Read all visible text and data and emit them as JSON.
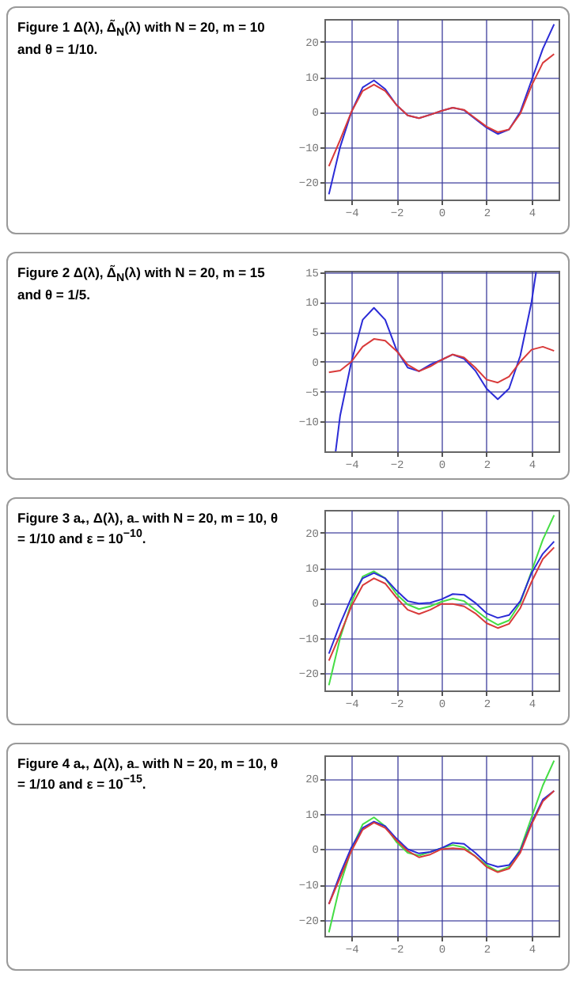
{
  "chart_data": [
    {
      "type": "line",
      "title": "Figure 1  Δ(λ), Δ̃$_{N}$(λ) with N = 20, m = 10 and θ = 1/10.",
      "x": [
        -5,
        -4.5,
        -4,
        -3.5,
        -3,
        -2.5,
        -2,
        -1.5,
        -1,
        -0.5,
        0,
        0.5,
        1,
        1.5,
        2,
        2.5,
        3,
        3.5,
        4,
        4.5,
        5
      ],
      "xlim": [
        -5.2,
        5.2
      ],
      "xticks": [
        -4,
        -2,
        0,
        2,
        4
      ],
      "ylim": [
        -25,
        26.5
      ],
      "yticks": [
        -20,
        -10,
        0,
        10,
        20
      ],
      "grid": true,
      "series": [
        {
          "color": "#2b2bd6",
          "values": [
            -23.5,
            -10,
            0,
            7,
            9,
            6.5,
            2,
            -1,
            -1.8,
            -0.8,
            0.3,
            1.2,
            0.5,
            -2,
            -4.5,
            -6.3,
            -5,
            0,
            9,
            18,
            25
          ]
        },
        {
          "color": "#d93a3a",
          "values": [
            -15.5,
            -8,
            0,
            6,
            7.8,
            6,
            2,
            -1,
            -1.8,
            -0.8,
            0.3,
            1.2,
            0.6,
            -1.8,
            -4.2,
            -5.8,
            -5,
            -0.5,
            7.5,
            14,
            16.5
          ]
        }
      ]
    },
    {
      "type": "line",
      "title": "Figure 2  Δ(λ), Δ̃$_{N}$(λ) with N = 20, m = 15 and θ = 1/5.",
      "x": [
        -5,
        -4.5,
        -4,
        -3.5,
        -3,
        -2.5,
        -2,
        -1.5,
        -1,
        -0.5,
        0,
        0.5,
        1,
        1.5,
        2,
        2.5,
        3,
        3.5,
        4,
        4.5,
        5
      ],
      "xlim": [
        -5.2,
        5.2
      ],
      "xticks": [
        -4,
        -2,
        0,
        2,
        4
      ],
      "ylim": [
        -15,
        15.2
      ],
      "yticks": [
        -10,
        -5,
        0,
        5,
        10,
        15
      ],
      "grid": true,
      "series": [
        {
          "color": "#2b2bd6",
          "x": [
            -4.7,
            -4.5,
            -4,
            -3.5,
            -3,
            -2.5,
            -2,
            -1.5,
            -1,
            -0.5,
            0,
            0.5,
            1,
            1.5,
            2,
            2.5,
            3,
            3.5,
            4,
            4.2
          ],
          "values": [
            -15,
            -9,
            0,
            7,
            9,
            7,
            2,
            -1,
            -1.6,
            -0.5,
            0.3,
            1.2,
            0.5,
            -1.5,
            -4.5,
            -6.3,
            -4.5,
            1,
            10,
            15
          ]
        },
        {
          "color": "#d93a3a",
          "values": [
            -1.8,
            -1.5,
            0,
            2.5,
            3.8,
            3.5,
            1.8,
            -0.5,
            -1.6,
            -0.8,
            0.3,
            1.2,
            0.7,
            -1,
            -3,
            -3.5,
            -2.5,
            0,
            2,
            2.5,
            1.8
          ]
        }
      ]
    },
    {
      "type": "line",
      "title": "Figure 3  a₊, Δ(λ), a₋ with N = 20, m = 10, θ = 1/10 and ε = 10$^{−10}$.",
      "x": [
        -5,
        -4.5,
        -4,
        -3.5,
        -3,
        -2.5,
        -2,
        -1.5,
        -1,
        -0.5,
        0,
        0.5,
        1,
        1.5,
        2,
        2.5,
        3,
        3.5,
        4,
        4.5,
        5
      ],
      "xlim": [
        -5.2,
        5.2
      ],
      "xticks": [
        -4,
        -2,
        0,
        2,
        4
      ],
      "ylim": [
        -25,
        26.5
      ],
      "yticks": [
        -20,
        -10,
        0,
        10,
        20
      ],
      "grid": true,
      "series": [
        {
          "color": "#44dd44",
          "values": [
            -23.5,
            -10,
            0,
            7.5,
            9,
            7,
            2.5,
            -0.5,
            -1.8,
            -1,
            0.3,
            1.2,
            0.5,
            -2,
            -4.5,
            -6.3,
            -5,
            0,
            9,
            18,
            25
          ]
        },
        {
          "color": "#2b2bd6",
          "values": [
            -14.5,
            -6,
            1.5,
            7,
            8.5,
            7,
            3.5,
            0.5,
            -0.2,
            0,
            1,
            2.5,
            2.3,
            0,
            -3,
            -4.3,
            -3.5,
            0.5,
            8.5,
            14,
            17.5
          ]
        },
        {
          "color": "#d93a3a",
          "values": [
            -16.5,
            -9,
            -1,
            5,
            7,
            5.5,
            1.5,
            -2,
            -3.2,
            -2,
            -0.3,
            -0.3,
            -1,
            -3,
            -5.8,
            -7.2,
            -6,
            -1.5,
            6,
            12.5,
            15.8
          ]
        }
      ]
    },
    {
      "type": "line",
      "title": "Figure 4  a₊, Δ(λ), a₋ with N = 20, m = 10, θ = 1/10 and ε = 10$^{−15}$.",
      "x": [
        -5,
        -4.5,
        -4,
        -3.5,
        -3,
        -2.5,
        -2,
        -1.5,
        -1,
        -0.5,
        0,
        0.5,
        1,
        1.5,
        2,
        2.5,
        3,
        3.5,
        4,
        4.5,
        5
      ],
      "xlim": [
        -5.2,
        5.2
      ],
      "xticks": [
        -4,
        -2,
        0,
        2,
        4
      ],
      "ylim": [
        -24.5,
        26.5
      ],
      "yticks": [
        -20,
        -10,
        0,
        10,
        20
      ],
      "grid": true,
      "series": [
        {
          "color": "#44dd44",
          "values": [
            -23.5,
            -10,
            0,
            7,
            9,
            6.5,
            2,
            -1,
            -1.8,
            -0.8,
            0.3,
            1.2,
            0.5,
            -2,
            -4.5,
            -6.3,
            -5,
            0,
            9,
            18,
            25
          ]
        },
        {
          "color": "#2b2bd6",
          "values": [
            -15.5,
            -7,
            0.5,
            6,
            7.8,
            6.5,
            3,
            0,
            -1.2,
            -0.8,
            0.3,
            1.8,
            1.5,
            -1,
            -4,
            -5,
            -4.5,
            -0.5,
            7.5,
            14,
            16.5
          ]
        },
        {
          "color": "#d93a3a",
          "values": [
            -15.5,
            -8,
            -0.5,
            5.5,
            7.5,
            6,
            2.5,
            -0.5,
            -2.3,
            -1.5,
            0,
            0.3,
            0,
            -2,
            -5,
            -6.5,
            -5.5,
            -1,
            7,
            13.5,
            16.5
          ]
        }
      ]
    }
  ]
}
